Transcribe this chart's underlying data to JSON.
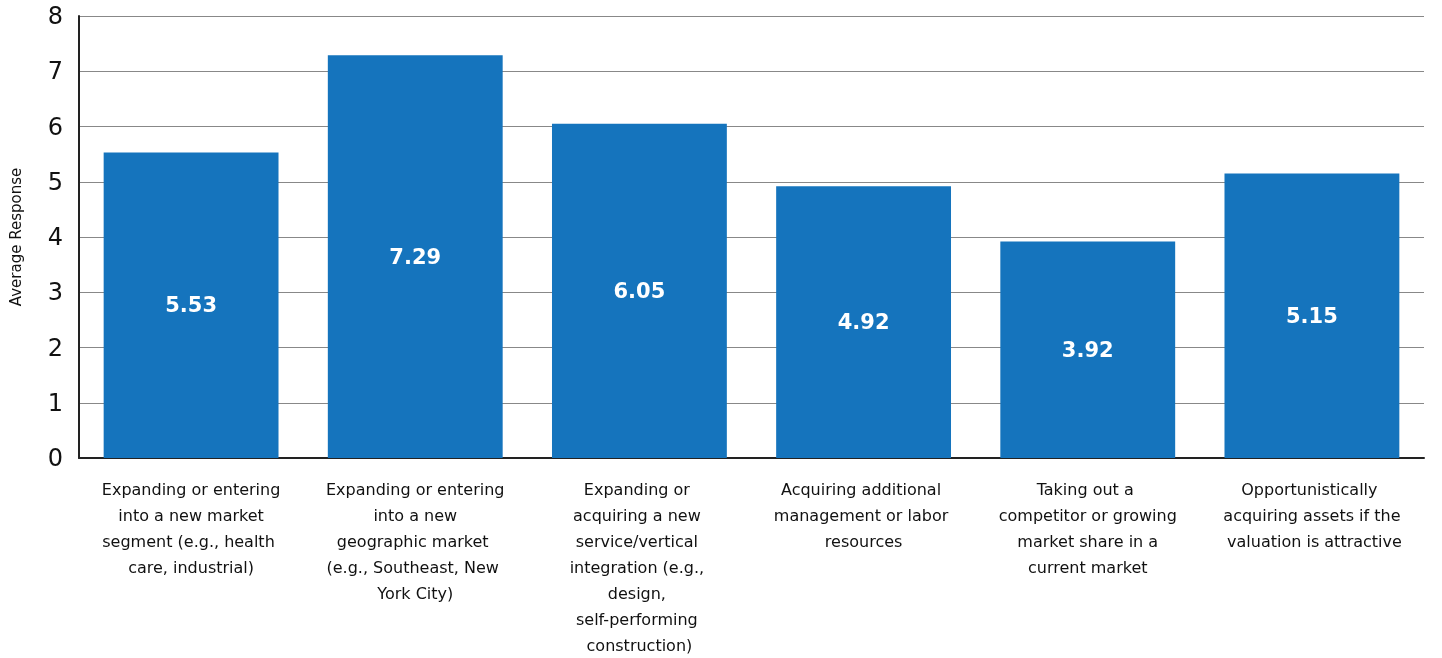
{
  "chart_data": {
    "type": "bar",
    "ylabel": "Average Response",
    "categories": [
      "Expanding or entering into a new market segment (e.g., health care, industrial)",
      "Expanding or entering into a new geographic market (e.g., Southeast, New York City)",
      "Expanding or acquiring a new service/vertical integration (e.g., design, self-performing construction)",
      "Acquiring additional management or labor resources",
      "Taking out a competitor or growing market share in a current market",
      "Opportunistically acquiring assets if the valuation is attractive"
    ],
    "values": [
      5.53,
      7.29,
      6.05,
      4.92,
      3.92,
      5.15
    ],
    "color": "#1574bd",
    "ylim": [
      0,
      8
    ],
    "yticks": [
      0,
      1,
      2,
      3,
      4,
      5,
      6,
      7,
      8
    ],
    "grid": true,
    "data_labels": true
  }
}
